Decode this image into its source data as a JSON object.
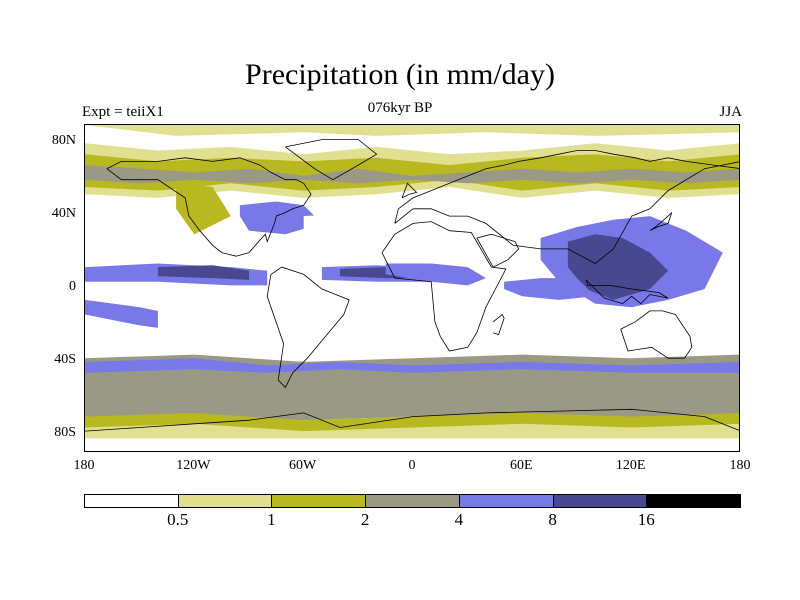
{
  "header": {
    "title": "Precipitation (in mm/day)",
    "experiment": "Expt = teiiX1",
    "period": "076kyr BP",
    "season": "JJA"
  },
  "map": {
    "projection": "cylindrical-equidistant",
    "lat_range": [
      -90,
      90
    ],
    "lon_range": [
      -180,
      180
    ],
    "lat_ticks": [
      {
        "lat": 80,
        "label": "80N"
      },
      {
        "lat": 40,
        "label": "40N"
      },
      {
        "lat": 0,
        "label": "0"
      },
      {
        "lat": -40,
        "label": "40S"
      },
      {
        "lat": -80,
        "label": "80S"
      }
    ],
    "lon_ticks": [
      {
        "lon": -180,
        "label": "180"
      },
      {
        "lon": -120,
        "label": "120W"
      },
      {
        "lon": -60,
        "label": "60W"
      },
      {
        "lon": 0,
        "label": "0"
      },
      {
        "lon": 60,
        "label": "60E"
      },
      {
        "lon": 120,
        "label": "120E"
      },
      {
        "lon": 180,
        "label": "180"
      }
    ],
    "background_class": "lt0.5",
    "regions": [
      {
        "id": "arctic-light",
        "class": "0.5-1",
        "lon": [
          -180,
          -130,
          -60,
          -20,
          40,
          100,
          180,
          180,
          -180
        ],
        "lat": [
          90,
          84,
          86,
          84,
          86,
          84,
          86,
          90,
          90
        ]
      },
      {
        "id": "north-midlat-band-light",
        "class": "0.5-1",
        "lon": [
          -180,
          -140,
          -100,
          -60,
          -20,
          20,
          60,
          100,
          140,
          180,
          180,
          140,
          100,
          60,
          20,
          -20,
          -60,
          -100,
          -140,
          -180
        ],
        "lat": [
          80,
          76,
          78,
          74,
          78,
          74,
          76,
          80,
          76,
          80,
          52,
          50,
          54,
          50,
          56,
          52,
          50,
          54,
          50,
          52
        ]
      },
      {
        "id": "north-midlat-band-mid",
        "class": "1-2",
        "lon": [
          -180,
          -140,
          -100,
          -60,
          -20,
          20,
          60,
          100,
          140,
          180,
          180,
          140,
          100,
          60,
          20,
          -20,
          -60,
          -100,
          -140,
          -180
        ],
        "lat": [
          74,
          70,
          72,
          70,
          72,
          68,
          72,
          74,
          70,
          74,
          56,
          54,
          58,
          54,
          60,
          56,
          54,
          58,
          54,
          56
        ]
      },
      {
        "id": "north-midlat-band-dark",
        "class": "2-4",
        "lon": [
          -180,
          -150,
          -120,
          -90,
          -60,
          -30,
          0,
          30,
          60,
          90,
          120,
          150,
          180,
          180,
          150,
          120,
          90,
          60,
          30,
          0,
          -30,
          -60,
          -90,
          -120,
          -150,
          -180
        ],
        "lat": [
          68,
          66,
          64,
          66,
          62,
          66,
          62,
          64,
          66,
          64,
          66,
          64,
          66,
          60,
          58,
          60,
          58,
          60,
          58,
          60,
          58,
          60,
          58,
          60,
          58,
          60
        ]
      },
      {
        "id": "north-america-west",
        "class": "1-2",
        "lon": [
          -130,
          -110,
          -100,
          -120,
          -130
        ],
        "lat": [
          58,
          56,
          40,
          30,
          44
        ]
      },
      {
        "id": "east-us-storm",
        "class": "4-8",
        "lon": [
          -95,
          -75,
          -60,
          -50,
          -70,
          -90,
          -95
        ],
        "lat": [
          46,
          48,
          46,
          36,
          30,
          32,
          40
        ]
      },
      {
        "id": "atlantic-subtropics-dry",
        "class": "lt0.5",
        "lon": [
          -60,
          -30,
          0,
          -10,
          -40,
          -60
        ],
        "lat": [
          40,
          42,
          38,
          24,
          20,
          30
        ]
      },
      {
        "id": "north-africa-dry",
        "class": "lt0.5",
        "lon": [
          -18,
          10,
          40,
          60,
          30,
          0,
          -18
        ],
        "lat": [
          34,
          36,
          36,
          22,
          14,
          14,
          20
        ]
      },
      {
        "id": "central-asia-dry",
        "class": "lt0.5",
        "lon": [
          40,
          60,
          80,
          70,
          50,
          40
        ],
        "lat": [
          48,
          50,
          44,
          36,
          38,
          44
        ]
      },
      {
        "id": "pacific-ne-dry",
        "class": "lt0.5",
        "lon": [
          -160,
          -130,
          -120,
          -140,
          -160
        ],
        "lat": [
          34,
          36,
          24,
          16,
          22
        ]
      },
      {
        "id": "itcz-pacific-mid",
        "class": "4-8",
        "lon": [
          -180,
          -140,
          -100,
          -80,
          -80,
          -100,
          -140,
          -180
        ],
        "lat": [
          12,
          14,
          12,
          10,
          2,
          2,
          4,
          4
        ]
      },
      {
        "id": "itcz-pacific-dark",
        "class": "8-16",
        "lon": [
          -140,
          -110,
          -90,
          -90,
          -110,
          -140
        ],
        "lat": [
          12,
          13,
          10,
          5,
          6,
          7
        ]
      },
      {
        "id": "itcz-atlantic",
        "class": "4-8",
        "lon": [
          -50,
          -20,
          10,
          10,
          -20,
          -50
        ],
        "lat": [
          12,
          13,
          12,
          4,
          4,
          5
        ]
      },
      {
        "id": "itcz-atlantic-dark",
        "class": "8-16",
        "lon": [
          -40,
          -15,
          5,
          5,
          -15,
          -40
        ],
        "lat": [
          11,
          12,
          10,
          6,
          6,
          7
        ]
      },
      {
        "id": "africa-sahel",
        "class": "4-8",
        "lon": [
          -15,
          10,
          30,
          40,
          30,
          10,
          -15
        ],
        "lat": [
          14,
          14,
          12,
          6,
          2,
          4,
          8
        ]
      },
      {
        "id": "asian-monsoon",
        "class": "4-8",
        "lon": [
          70,
          90,
          110,
          130,
          150,
          170,
          160,
          140,
          120,
          100,
          80,
          70
        ],
        "lat": [
          28,
          34,
          38,
          40,
          32,
          20,
          0,
          -6,
          -10,
          -8,
          4,
          16
        ]
      },
      {
        "id": "asian-monsoon-dark",
        "class": "8-16",
        "lon": [
          85,
          100,
          115,
          130,
          140,
          130,
          110,
          95,
          85
        ],
        "lat": [
          26,
          30,
          28,
          20,
          10,
          0,
          -6,
          0,
          12
        ]
      },
      {
        "id": "indian-ocean-itcz",
        "class": "4-8",
        "lon": [
          50,
          70,
          90,
          100,
          80,
          60,
          50
        ],
        "lat": [
          4,
          6,
          6,
          -4,
          -6,
          -4,
          0
        ]
      },
      {
        "id": "south-pacific-cz",
        "class": "4-8",
        "lon": [
          -180,
          -150,
          -120,
          -120,
          -150,
          -180
        ],
        "lat": [
          -6,
          -10,
          -16,
          -24,
          -20,
          -14
        ]
      },
      {
        "id": "south-atlantic-dry",
        "class": "lt0.5",
        "lon": [
          -30,
          0,
          10,
          0,
          -30,
          -40
        ],
        "lat": [
          -10,
          -6,
          -14,
          -30,
          -32,
          -20
        ]
      },
      {
        "id": "south-pacific-dry",
        "class": "lt0.5",
        "lon": [
          -140,
          -110,
          -80,
          -80,
          -110,
          -140
        ],
        "lat": [
          -8,
          -6,
          -10,
          -24,
          -30,
          -22
        ]
      },
      {
        "id": "south-america-dry",
        "class": "lt0.5",
        "lon": [
          -70,
          -50,
          -40,
          -50,
          -60,
          -70
        ],
        "lat": [
          -8,
          -6,
          -14,
          -26,
          -28,
          -16
        ]
      },
      {
        "id": "australia-dry",
        "class": "lt0.5",
        "lon": [
          118,
          135,
          150,
          145,
          128,
          116
        ],
        "lat": [
          -18,
          -14,
          -20,
          -34,
          -32,
          -24
        ]
      },
      {
        "id": "southern-band-mid",
        "class": "2-4",
        "lon": [
          -180,
          -120,
          -60,
          0,
          60,
          120,
          180,
          180,
          120,
          60,
          0,
          -60,
          -120,
          -180
        ],
        "lat": [
          -38,
          -36,
          -40,
          -38,
          -36,
          -38,
          -36,
          -72,
          -70,
          -72,
          -70,
          -72,
          -70,
          -72
        ]
      },
      {
        "id": "southern-storm",
        "class": "4-8",
        "lon": [
          -180,
          -120,
          -80,
          -40,
          0,
          60,
          120,
          180,
          180,
          120,
          60,
          0,
          -40,
          -80,
          -120,
          -180
        ],
        "lat": [
          -40,
          -38,
          -42,
          -40,
          -42,
          -40,
          -42,
          -40,
          -46,
          -46,
          -44,
          -46,
          -44,
          -46,
          -44,
          -46
        ]
      },
      {
        "id": "antarctic-coast",
        "class": "1-2",
        "lon": [
          -180,
          -120,
          -60,
          0,
          60,
          120,
          180,
          180,
          -180
        ],
        "lat": [
          -70,
          -68,
          -72,
          -70,
          -68,
          -70,
          -68,
          -78,
          -78
        ]
      },
      {
        "id": "antarctic-light",
        "class": "0.5-1",
        "lon": [
          -180,
          -120,
          -60,
          0,
          60,
          120,
          180,
          180,
          -180
        ],
        "lat": [
          -76,
          -74,
          -78,
          -76,
          -74,
          -76,
          -74,
          -82,
          -82
        ]
      }
    ],
    "coastlines": [
      {
        "id": "north-america",
        "lon": [
          -168,
          -160,
          -140,
          -125,
          -123,
          -117,
          -110,
          -105,
          -97,
          -90,
          -83,
          -81,
          -80,
          -76,
          -75,
          -70,
          -66,
          -60,
          -56,
          -60,
          -64,
          -70,
          -78,
          -84,
          -95,
          -110,
          -125,
          -140,
          -160,
          -168
        ],
        "lat": [
          66,
          60,
          60,
          50,
          40,
          32,
          24,
          20,
          18,
          20,
          28,
          30,
          26,
          36,
          40,
          42,
          44,
          46,
          52,
          58,
          60,
          60,
          64,
          68,
          72,
          70,
          72,
          70,
          70,
          66
        ]
      },
      {
        "id": "greenland",
        "lon": [
          -70,
          -50,
          -30,
          -20,
          -30,
          -44,
          -54,
          -70
        ],
        "lat": [
          78,
          82,
          82,
          74,
          68,
          60,
          66,
          78
        ]
      },
      {
        "id": "south-america",
        "lon": [
          -78,
          -72,
          -60,
          -50,
          -35,
          -38,
          -48,
          -58,
          -66,
          -70,
          -74,
          -71,
          -80,
          -78
        ],
        "lat": [
          8,
          12,
          8,
          0,
          -6,
          -14,
          -26,
          -38,
          -46,
          -54,
          -50,
          -30,
          -4,
          8
        ]
      },
      {
        "id": "eurasia",
        "lon": [
          -10,
          -8,
          0,
          10,
          20,
          30,
          40,
          50,
          58,
          70,
          80,
          90,
          100,
          110,
          122,
          130,
          140,
          150,
          165,
          180,
          180,
          160,
          140,
          130,
          120,
          110,
          100,
          85,
          70,
          55,
          40,
          30,
          20,
          10,
          0,
          -10
        ],
        "lat": [
          36,
          44,
          50,
          54,
          58,
          62,
          66,
          68,
          70,
          72,
          74,
          76,
          76,
          74,
          72,
          70,
          72,
          70,
          68,
          66,
          70,
          66,
          54,
          44,
          40,
          22,
          14,
          22,
          22,
          24,
          36,
          40,
          40,
          44,
          44,
          36
        ]
      },
      {
        "id": "africa",
        "lon": [
          -17,
          -10,
          0,
          10,
          20,
          32,
          43,
          51,
          40,
          35,
          30,
          20,
          15,
          12,
          10,
          0,
          -10,
          -17
        ],
        "lat": [
          20,
          30,
          36,
          37,
          32,
          31,
          12,
          11,
          -10,
          -24,
          -32,
          -34,
          -26,
          -18,
          4,
          5,
          6,
          20
        ]
      },
      {
        "id": "arabia",
        "lon": [
          35,
          43,
          56,
          58,
          52,
          44,
          35
        ],
        "lat": [
          28,
          30,
          26,
          22,
          16,
          12,
          28
        ]
      },
      {
        "id": "australia",
        "lon": [
          114,
          122,
          130,
          137,
          144,
          152,
          153,
          149,
          140,
          131,
          118,
          114
        ],
        "lat": [
          -22,
          -18,
          -12,
          -12,
          -14,
          -26,
          -32,
          -38,
          -38,
          -32,
          -34,
          -22
        ]
      },
      {
        "id": "madagascar",
        "lon": [
          44,
          49,
          50,
          47,
          44
        ],
        "lat": [
          -18,
          -14,
          -16,
          -25,
          -24
        ]
      },
      {
        "id": "japan",
        "lon": [
          130,
          134,
          140,
          142,
          140,
          133,
          130
        ],
        "lat": [
          32,
          34,
          36,
          42,
          40,
          34,
          32
        ]
      },
      {
        "id": "antarctica",
        "lon": [
          -180,
          -150,
          -120,
          -90,
          -60,
          -40,
          0,
          40,
          80,
          120,
          160,
          180
        ],
        "lat": [
          -78,
          -76,
          -74,
          -72,
          -68,
          -76,
          -70,
          -68,
          -67,
          -66,
          -70,
          -78
        ]
      },
      {
        "id": "uk",
        "lon": [
          -6,
          -2,
          2,
          -3,
          -6
        ],
        "lat": [
          50,
          52,
          53,
          58,
          50
        ]
      },
      {
        "id": "indonesia",
        "lon": [
          95,
          105,
          115,
          120,
          125,
          130,
          140,
          135,
          120,
          108,
          96,
          95
        ],
        "lat": [
          5,
          -5,
          -8,
          -4,
          -8,
          -3,
          -5,
          -2,
          0,
          2,
          2,
          5
        ]
      }
    ]
  },
  "legend": {
    "classes": [
      "lt0.5",
      "0.5-1",
      "1-2",
      "2-4",
      "4-8",
      "8-16",
      "gt16"
    ],
    "colors": [
      "#ffffff",
      "#e0e090",
      "#b8b820",
      "#999985",
      "#7878e8",
      "#484890",
      "#000000"
    ],
    "boundary_labels": [
      "0.5",
      "1",
      "2",
      "4",
      "8",
      "16"
    ]
  }
}
